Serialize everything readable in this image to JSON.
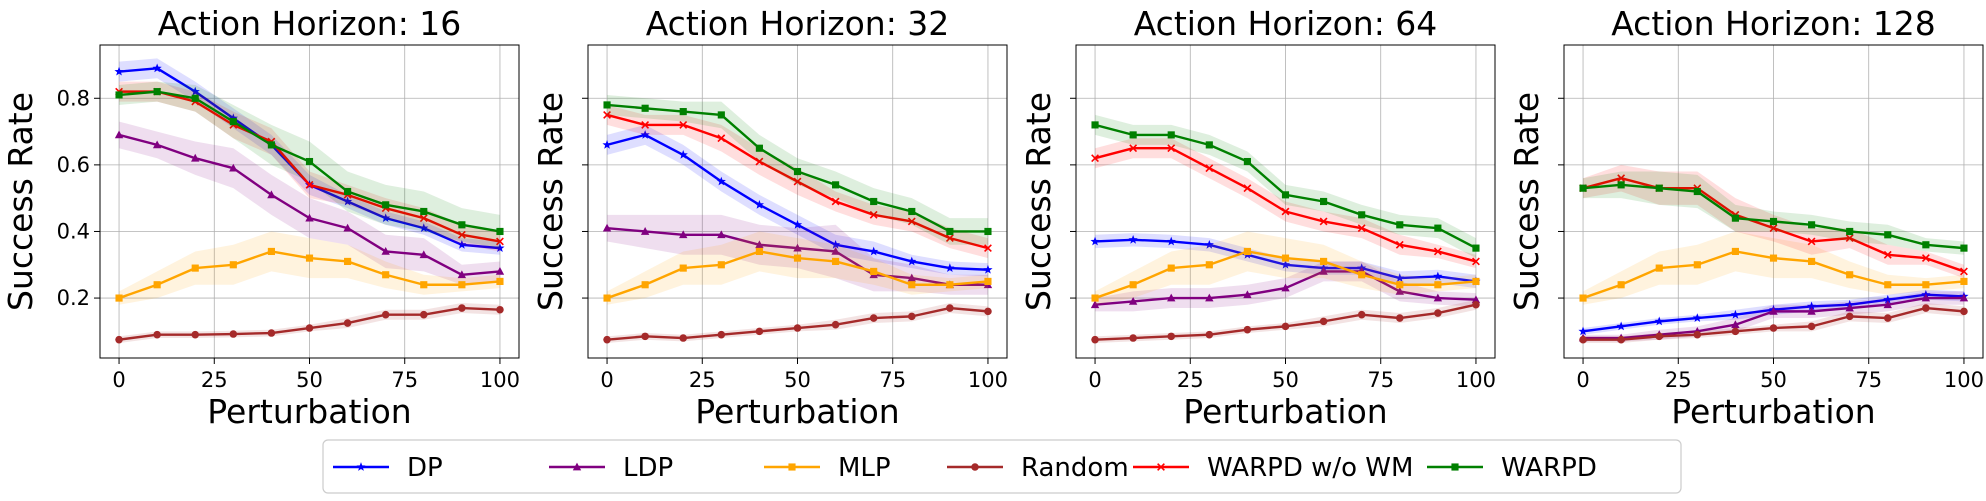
{
  "figure": {
    "legend_position": "bottom-center",
    "legend": [
      {
        "series": "DP",
        "label": "DP"
      },
      {
        "series": "LDP",
        "label": "LDP"
      },
      {
        "series": "MLP",
        "label": "MLP"
      },
      {
        "series": "Random",
        "label": "Random"
      },
      {
        "series": "WARPD w/o WM",
        "label": "WARPD w/o WM"
      },
      {
        "series": "WARPD",
        "label": "WARPD"
      }
    ]
  },
  "styles": {
    "DP": {
      "color": "#0000ff",
      "marker": "star"
    },
    "LDP": {
      "color": "#800080",
      "marker": "triangle"
    },
    "MLP": {
      "color": "#ffa500",
      "marker": "square"
    },
    "Random": {
      "color": "#a52a2a",
      "marker": "circle"
    },
    "WARPD w/o WM": {
      "color": "#ff0000",
      "marker": "x"
    },
    "WARPD": {
      "color": "#008000",
      "marker": "square"
    }
  },
  "chart_data": [
    {
      "type": "line",
      "title": "Action Horizon: 16",
      "xlabel": "Perturbation",
      "ylabel": "Success Rate",
      "xlim": [
        -5,
        105
      ],
      "ylim": [
        0.02,
        0.96
      ],
      "xticks": [
        0,
        25,
        50,
        75,
        100
      ],
      "xtick_labels": [
        "0",
        "25",
        "50",
        "75",
        "100"
      ],
      "yticks": [
        0.2,
        0.4,
        0.6,
        0.8
      ],
      "ytick_labels": [
        "0.2",
        "0.4",
        "0.6",
        "0.8"
      ],
      "grid": true,
      "x": [
        0,
        10,
        20,
        30,
        40,
        50,
        60,
        70,
        80,
        90,
        100
      ],
      "series": [
        {
          "name": "DP",
          "values": [
            0.88,
            0.89,
            0.82,
            0.74,
            0.66,
            0.54,
            0.49,
            0.44,
            0.41,
            0.36,
            0.35
          ],
          "band": [
            0.03,
            0.03,
            0.03,
            0.03,
            0.03,
            0.03,
            0.02,
            0.02,
            0.02,
            0.02,
            0.02
          ]
        },
        {
          "name": "LDP",
          "values": [
            0.69,
            0.66,
            0.62,
            0.59,
            0.51,
            0.44,
            0.41,
            0.34,
            0.33,
            0.27,
            0.28
          ],
          "band": [
            0.04,
            0.04,
            0.05,
            0.06,
            0.06,
            0.06,
            0.05,
            0.05,
            0.05,
            0.03,
            0.03
          ]
        },
        {
          "name": "MLP",
          "values": [
            0.2,
            0.24,
            0.29,
            0.3,
            0.34,
            0.32,
            0.31,
            0.27,
            0.24,
            0.24,
            0.25
          ],
          "band": [
            0.02,
            0.04,
            0.05,
            0.06,
            0.06,
            0.06,
            0.05,
            0.04,
            0.03,
            0.02,
            0.02
          ]
        },
        {
          "name": "Random",
          "values": [
            0.075,
            0.09,
            0.09,
            0.092,
            0.095,
            0.11,
            0.125,
            0.15,
            0.15,
            0.17,
            0.165
          ],
          "band": [
            0.01,
            0.01,
            0.01,
            0.01,
            0.01,
            0.01,
            0.015,
            0.015,
            0.015,
            0.015,
            0.015
          ]
        },
        {
          "name": "WARPD w/o WM",
          "values": [
            0.82,
            0.82,
            0.79,
            0.72,
            0.67,
            0.54,
            0.51,
            0.47,
            0.44,
            0.39,
            0.37
          ],
          "band": [
            0.03,
            0.03,
            0.03,
            0.04,
            0.04,
            0.04,
            0.03,
            0.03,
            0.03,
            0.03,
            0.03
          ]
        },
        {
          "name": "WARPD",
          "values": [
            0.81,
            0.82,
            0.8,
            0.73,
            0.66,
            0.61,
            0.52,
            0.48,
            0.46,
            0.42,
            0.4
          ],
          "band": [
            0.03,
            0.03,
            0.04,
            0.05,
            0.06,
            0.06,
            0.06,
            0.06,
            0.06,
            0.05,
            0.05
          ]
        }
      ]
    },
    {
      "type": "line",
      "title": "Action Horizon: 32",
      "xlabel": "Perturbation",
      "ylabel": "Success Rate",
      "xlim": [
        -5,
        105
      ],
      "ylim": [
        0.02,
        0.96
      ],
      "xticks": [
        0,
        25,
        50,
        75,
        100
      ],
      "xtick_labels": [
        "0",
        "25",
        "50",
        "75",
        "100"
      ],
      "yticks": [
        0.2,
        0.4,
        0.6,
        0.8
      ],
      "ytick_labels": [
        "",
        "",
        "",
        ""
      ],
      "grid": true,
      "x": [
        0,
        10,
        20,
        30,
        40,
        50,
        60,
        70,
        80,
        90,
        100
      ],
      "series": [
        {
          "name": "DP",
          "values": [
            0.66,
            0.69,
            0.63,
            0.55,
            0.48,
            0.42,
            0.36,
            0.34,
            0.31,
            0.29,
            0.285
          ],
          "band": [
            0.03,
            0.03,
            0.03,
            0.03,
            0.03,
            0.03,
            0.03,
            0.03,
            0.02,
            0.02,
            0.02
          ]
        },
        {
          "name": "LDP",
          "values": [
            0.41,
            0.4,
            0.39,
            0.39,
            0.36,
            0.35,
            0.34,
            0.27,
            0.26,
            0.24,
            0.24
          ],
          "band": [
            0.04,
            0.05,
            0.06,
            0.06,
            0.06,
            0.06,
            0.08,
            0.05,
            0.04,
            0.03,
            0.03
          ]
        },
        {
          "name": "MLP",
          "values": [
            0.2,
            0.24,
            0.29,
            0.3,
            0.34,
            0.32,
            0.31,
            0.28,
            0.24,
            0.24,
            0.25
          ],
          "band": [
            0.02,
            0.04,
            0.05,
            0.06,
            0.06,
            0.06,
            0.05,
            0.04,
            0.03,
            0.02,
            0.02
          ]
        },
        {
          "name": "Random",
          "values": [
            0.075,
            0.085,
            0.08,
            0.09,
            0.1,
            0.11,
            0.12,
            0.14,
            0.145,
            0.17,
            0.16
          ],
          "band": [
            0.01,
            0.01,
            0.01,
            0.01,
            0.01,
            0.01,
            0.015,
            0.015,
            0.015,
            0.015,
            0.015
          ]
        },
        {
          "name": "WARPD w/o WM",
          "values": [
            0.75,
            0.72,
            0.72,
            0.68,
            0.61,
            0.55,
            0.49,
            0.45,
            0.43,
            0.38,
            0.35
          ],
          "band": [
            0.03,
            0.03,
            0.03,
            0.04,
            0.04,
            0.04,
            0.03,
            0.03,
            0.03,
            0.03,
            0.03
          ]
        },
        {
          "name": "WARPD",
          "values": [
            0.78,
            0.77,
            0.76,
            0.75,
            0.65,
            0.58,
            0.54,
            0.49,
            0.46,
            0.4,
            0.4
          ],
          "band": [
            0.03,
            0.03,
            0.03,
            0.04,
            0.04,
            0.04,
            0.04,
            0.04,
            0.04,
            0.04,
            0.04
          ]
        }
      ]
    },
    {
      "type": "line",
      "title": "Action Horizon: 64",
      "xlabel": "Perturbation",
      "ylabel": "Success Rate",
      "xlim": [
        -5,
        105
      ],
      "ylim": [
        0.02,
        0.96
      ],
      "xticks": [
        0,
        25,
        50,
        75,
        100
      ],
      "xtick_labels": [
        "0",
        "25",
        "50",
        "75",
        "100"
      ],
      "yticks": [
        0.2,
        0.4,
        0.6,
        0.8
      ],
      "ytick_labels": [
        "",
        "",
        "",
        ""
      ],
      "grid": true,
      "x": [
        0,
        10,
        20,
        30,
        40,
        50,
        60,
        70,
        80,
        90,
        100
      ],
      "series": [
        {
          "name": "DP",
          "values": [
            0.37,
            0.375,
            0.37,
            0.36,
            0.33,
            0.3,
            0.29,
            0.29,
            0.26,
            0.265,
            0.25
          ],
          "band": [
            0.02,
            0.02,
            0.02,
            0.02,
            0.02,
            0.02,
            0.02,
            0.02,
            0.02,
            0.02,
            0.02
          ]
        },
        {
          "name": "LDP",
          "values": [
            0.18,
            0.19,
            0.2,
            0.2,
            0.21,
            0.23,
            0.28,
            0.28,
            0.22,
            0.2,
            0.195
          ],
          "band": [
            0.02,
            0.03,
            0.03,
            0.03,
            0.03,
            0.03,
            0.03,
            0.03,
            0.03,
            0.02,
            0.02
          ]
        },
        {
          "name": "MLP",
          "values": [
            0.2,
            0.24,
            0.29,
            0.3,
            0.34,
            0.32,
            0.31,
            0.27,
            0.24,
            0.24,
            0.25
          ],
          "band": [
            0.02,
            0.04,
            0.05,
            0.06,
            0.06,
            0.06,
            0.05,
            0.04,
            0.03,
            0.02,
            0.02
          ]
        },
        {
          "name": "Random",
          "values": [
            0.075,
            0.08,
            0.085,
            0.09,
            0.105,
            0.115,
            0.13,
            0.15,
            0.14,
            0.155,
            0.18
          ],
          "band": [
            0.01,
            0.01,
            0.01,
            0.01,
            0.01,
            0.01,
            0.015,
            0.015,
            0.015,
            0.015,
            0.015
          ]
        },
        {
          "name": "WARPD w/o WM",
          "values": [
            0.62,
            0.65,
            0.65,
            0.59,
            0.53,
            0.46,
            0.43,
            0.41,
            0.36,
            0.34,
            0.31
          ],
          "band": [
            0.03,
            0.03,
            0.03,
            0.03,
            0.03,
            0.03,
            0.03,
            0.03,
            0.03,
            0.02,
            0.02
          ]
        },
        {
          "name": "WARPD",
          "values": [
            0.72,
            0.69,
            0.69,
            0.66,
            0.61,
            0.51,
            0.49,
            0.45,
            0.42,
            0.41,
            0.35
          ],
          "band": [
            0.03,
            0.03,
            0.03,
            0.03,
            0.03,
            0.03,
            0.03,
            0.03,
            0.03,
            0.03,
            0.03
          ]
        }
      ]
    },
    {
      "type": "line",
      "title": "Action Horizon: 128",
      "xlabel": "Perturbation",
      "ylabel": "Success Rate",
      "xlim": [
        -5,
        105
      ],
      "ylim": [
        0.02,
        0.96
      ],
      "xticks": [
        0,
        25,
        50,
        75,
        100
      ],
      "xtick_labels": [
        "0",
        "25",
        "50",
        "75",
        "100"
      ],
      "yticks": [
        0.2,
        0.4,
        0.6,
        0.8
      ],
      "ytick_labels": [
        "",
        "",
        "",
        ""
      ],
      "grid": true,
      "x": [
        0,
        10,
        20,
        30,
        40,
        50,
        60,
        70,
        80,
        90,
        100
      ],
      "series": [
        {
          "name": "DP",
          "values": [
            0.1,
            0.115,
            0.13,
            0.14,
            0.15,
            0.165,
            0.175,
            0.18,
            0.195,
            0.21,
            0.205
          ],
          "band": [
            0.01,
            0.01,
            0.01,
            0.01,
            0.015,
            0.015,
            0.015,
            0.015,
            0.015,
            0.015,
            0.015
          ]
        },
        {
          "name": "LDP",
          "values": [
            0.08,
            0.08,
            0.09,
            0.1,
            0.12,
            0.16,
            0.16,
            0.17,
            0.18,
            0.2,
            0.2
          ],
          "band": [
            0.01,
            0.01,
            0.015,
            0.015,
            0.02,
            0.02,
            0.02,
            0.02,
            0.02,
            0.02,
            0.02
          ]
        },
        {
          "name": "MLP",
          "values": [
            0.2,
            0.24,
            0.29,
            0.3,
            0.34,
            0.32,
            0.31,
            0.27,
            0.24,
            0.24,
            0.25
          ],
          "band": [
            0.02,
            0.04,
            0.05,
            0.06,
            0.06,
            0.06,
            0.05,
            0.04,
            0.03,
            0.02,
            0.02
          ]
        },
        {
          "name": "Random",
          "values": [
            0.075,
            0.075,
            0.085,
            0.09,
            0.1,
            0.11,
            0.115,
            0.145,
            0.14,
            0.17,
            0.16
          ],
          "band": [
            0.01,
            0.01,
            0.01,
            0.01,
            0.01,
            0.01,
            0.015,
            0.015,
            0.015,
            0.015,
            0.015
          ]
        },
        {
          "name": "WARPD w/o WM",
          "values": [
            0.53,
            0.56,
            0.53,
            0.53,
            0.45,
            0.41,
            0.37,
            0.38,
            0.33,
            0.32,
            0.28
          ],
          "band": [
            0.03,
            0.04,
            0.05,
            0.05,
            0.05,
            0.04,
            0.04,
            0.03,
            0.03,
            0.02,
            0.02
          ]
        },
        {
          "name": "WARPD",
          "values": [
            0.53,
            0.54,
            0.53,
            0.52,
            0.44,
            0.43,
            0.42,
            0.4,
            0.39,
            0.36,
            0.35
          ],
          "band": [
            0.03,
            0.04,
            0.05,
            0.05,
            0.04,
            0.03,
            0.03,
            0.03,
            0.03,
            0.02,
            0.02
          ]
        }
      ]
    }
  ]
}
